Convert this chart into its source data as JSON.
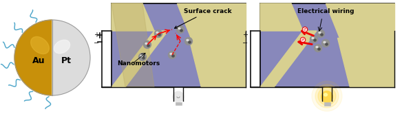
{
  "bg_color": "#ffffff",
  "panel1": {
    "au_color": "#C8900A",
    "au_highlight": "#E8B830",
    "pt_color": "#DCDCDC",
    "pt_highlight": "#F5F5F5",
    "au_label": "Au",
    "pt_label": "Pt",
    "wave_color": "#55AACC"
  },
  "panel2": {
    "bg_purple": "#8888BB",
    "wire_yellow": "#D8D090",
    "crack_label": "Surface crack",
    "nano_label": "Nanomotors",
    "dashed_color": "#FF0000",
    "particle_body": "#909090",
    "particle_dark": "#505050"
  },
  "panel3": {
    "bg_purple": "#8888BB",
    "wire_yellow": "#D8D090",
    "elec_label": "Electrical wiring",
    "arrow_color": "#EE0000",
    "particle_body": "#909090",
    "particle_dark": "#505050"
  },
  "circuit_color": "#111111",
  "plus_minus_fontsize": 7,
  "label_fontsize": 6.5
}
